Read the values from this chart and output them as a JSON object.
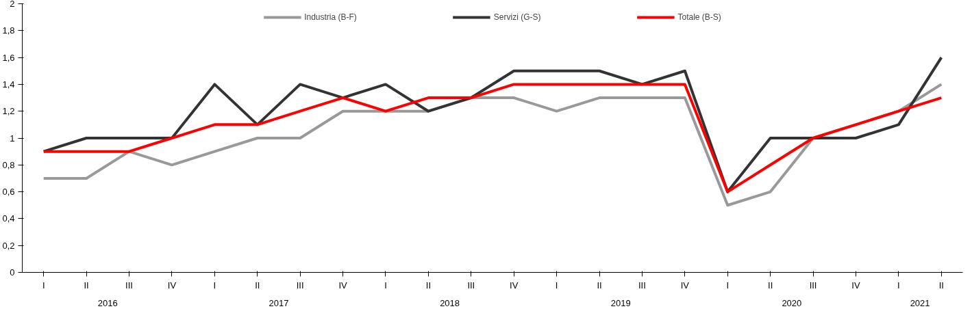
{
  "chart_data": {
    "type": "line",
    "categories": [
      "I",
      "II",
      "III",
      "IV",
      "I",
      "II",
      "III",
      "IV",
      "I",
      "II",
      "III",
      "IV",
      "I",
      "II",
      "III",
      "IV",
      "I",
      "II",
      "III",
      "IV",
      "I",
      "II"
    ],
    "annotations": [
      "2016",
      "2017",
      "2018",
      "2019",
      "2020",
      "2021"
    ],
    "series": [
      {
        "name": "Industria (B-F)",
        "color": "#999999",
        "values": [
          0.7,
          0.7,
          0.9,
          0.8,
          0.9,
          1.0,
          1.0,
          1.2,
          1.2,
          1.2,
          1.3,
          1.3,
          1.2,
          1.3,
          1.3,
          1.3,
          0.5,
          0.6,
          1.0,
          1.1,
          1.2,
          1.4
        ]
      },
      {
        "name": "Servizi (G-S)",
        "color": "#333333",
        "values": [
          0.9,
          1.0,
          1.0,
          1.0,
          1.4,
          1.1,
          1.4,
          1.3,
          1.4,
          1.2,
          1.3,
          1.5,
          1.5,
          1.5,
          1.4,
          1.5,
          0.6,
          1.0,
          1.0,
          1.0,
          1.1,
          1.6
        ]
      },
      {
        "name": "Totale (B-S)",
        "color": "#ff0000",
        "values": [
          0.9,
          0.9,
          0.9,
          1.0,
          1.1,
          1.1,
          1.2,
          1.3,
          1.2,
          1.3,
          1.3,
          1.4,
          1.4,
          1.4,
          1.4,
          1.4,
          0.6,
          0.8,
          1.0,
          1.1,
          1.2,
          1.3
        ]
      }
    ],
    "ylim": [
      0,
      2
    ],
    "yticks": [
      0,
      {
        "value": 0.2,
        "label": "0,2"
      },
      {
        "value": 0.4,
        "label": "0,4"
      },
      {
        "value": 0.6,
        "label": "0,6"
      },
      {
        "value": 0.8,
        "label": "0,8"
      },
      1,
      {
        "value": 1.2,
        "label": "1,2"
      },
      {
        "value": 1.4,
        "label": "1,4"
      },
      {
        "value": 1.6,
        "label": "1,6"
      },
      {
        "value": 1.8,
        "label": "1,8"
      },
      2
    ],
    "grid": false,
    "legend": "top",
    "marker": "none",
    "line_style": "solid"
  }
}
